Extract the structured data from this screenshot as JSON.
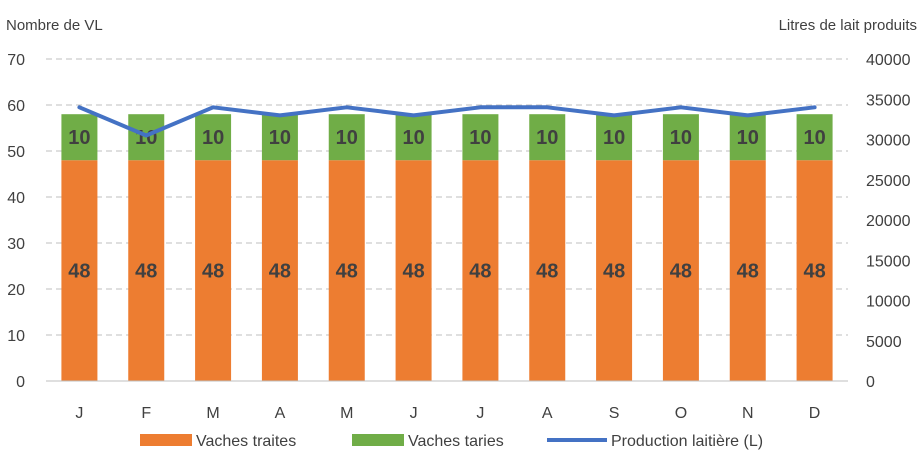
{
  "chart_data": {
    "type": "bar",
    "stacked": true,
    "categories": [
      "J",
      "F",
      "M",
      "A",
      "M",
      "J",
      "J",
      "A",
      "S",
      "O",
      "N",
      "D"
    ],
    "series": [
      {
        "name": "Vaches traites",
        "kind": "bar",
        "axis": "left",
        "color": "#ED7D31",
        "values": [
          48,
          48,
          48,
          48,
          48,
          48,
          48,
          48,
          48,
          48,
          48,
          48
        ]
      },
      {
        "name": "Vaches taries",
        "kind": "bar",
        "axis": "left",
        "color": "#70AD47",
        "values": [
          10,
          10,
          10,
          10,
          10,
          10,
          10,
          10,
          10,
          10,
          10,
          10
        ]
      },
      {
        "name": "Production laitière (L)",
        "kind": "line",
        "axis": "right",
        "color": "#4472C4",
        "values": [
          34000,
          30500,
          34000,
          33000,
          34000,
          33000,
          34000,
          34000,
          33000,
          34000,
          33000,
          34000
        ]
      }
    ],
    "ylabel": "Nombre de VL",
    "y2label": "Litres de lait produits",
    "ylim": [
      0,
      70
    ],
    "yticks": [
      0,
      10,
      20,
      30,
      40,
      50,
      60,
      70
    ],
    "y2lim": [
      0,
      40000
    ],
    "y2ticks": [
      0,
      5000,
      10000,
      15000,
      20000,
      25000,
      30000,
      35000,
      40000
    ],
    "grid": true,
    "legend_position": "bottom"
  }
}
